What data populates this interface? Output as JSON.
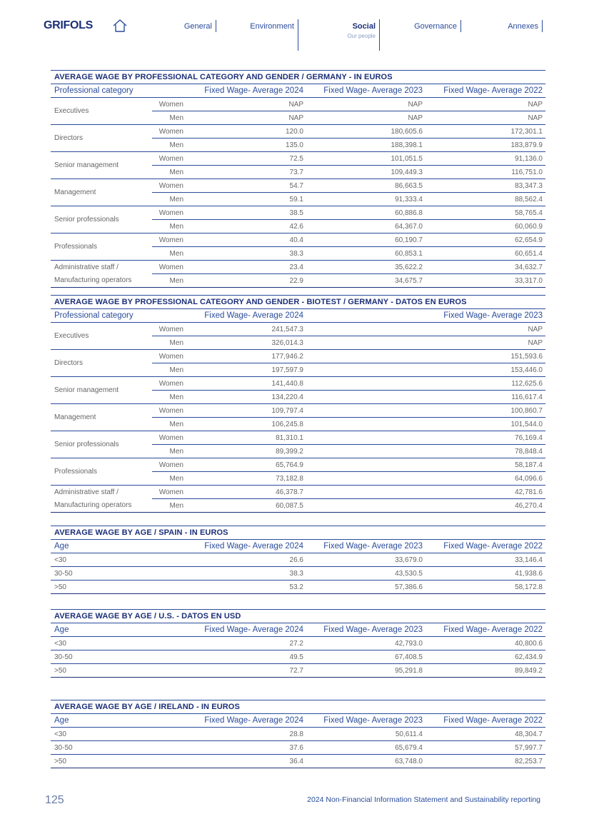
{
  "header": {
    "logo": "GRIFOLS",
    "nav": {
      "general": "General",
      "environment": "Environment",
      "social": "Social",
      "social_sub": "Our people",
      "governance": "Governance",
      "annexes": "Annexes"
    }
  },
  "table1": {
    "title": "AVERAGE WAGE BY PROFESSIONAL CATEGORY AND GENDER / GERMANY - IN EUROS",
    "headers": [
      "Professional category",
      "Fixed Wage- Average 2024",
      "Fixed Wage- Average 2023",
      "Fixed Wage- Average 2022"
    ],
    "rows": [
      {
        "category": "Executives",
        "women": [
          "NAP",
          "NAP",
          "NAP"
        ],
        "men": [
          "NAP",
          "NAP",
          "NAP"
        ]
      },
      {
        "category": "Directors",
        "women": [
          "120.0",
          "180,605.6",
          "172,301.1"
        ],
        "men": [
          "135.0",
          "188,398.1",
          "183,879.9"
        ]
      },
      {
        "category": "Senior management",
        "women": [
          "72.5",
          "101,051.5",
          "91,136.0"
        ],
        "men": [
          "73.7",
          "109,449.3",
          "116,751.0"
        ]
      },
      {
        "category": "Management",
        "women": [
          "54.7",
          "86,663.5",
          "83,347.3"
        ],
        "men": [
          "59.1",
          "91,333.4",
          "88,562.4"
        ]
      },
      {
        "category": "Senior professionals",
        "women": [
          "38.5",
          "60,886.8",
          "58,765.4"
        ],
        "men": [
          "42.6",
          "64,367.0",
          "60,060.9"
        ]
      },
      {
        "category": "Professionals",
        "women": [
          "40.4",
          "60,190.7",
          "62,654.9"
        ],
        "men": [
          "38.3",
          "60,853.1",
          "60,651.4"
        ]
      },
      {
        "category_line1": "Administrative staff /",
        "category_line2": "Manufacturing operators",
        "women": [
          "23.4",
          "35,622.2",
          "34,632.7"
        ],
        "men": [
          "22.9",
          "34,675.7",
          "33,317.0"
        ]
      }
    ],
    "women": "Women",
    "men": "Men"
  },
  "table2": {
    "title": "AVERAGE WAGE BY PROFESSIONAL CATEGORY AND GENDER - BIOTEST / GERMANY - DATOS EN EUROS",
    "headers": [
      "Professional category",
      "Fixed Wage- Average 2024",
      "Fixed Wage- Average 2023"
    ],
    "rows": [
      {
        "category": "Executives",
        "women": [
          "241,547.3",
          "NAP"
        ],
        "men": [
          "326,014.3",
          "NAP"
        ]
      },
      {
        "category": "Directors",
        "women": [
          "177,946.2",
          "151,593.6"
        ],
        "men": [
          "197,597.9",
          "153,446.0"
        ]
      },
      {
        "category": "Senior management",
        "women": [
          "141,440.8",
          "112,625.6"
        ],
        "men": [
          "134,220.4",
          "116,617.4"
        ]
      },
      {
        "category": "Management",
        "women": [
          "109,797.4",
          "100,860.7"
        ],
        "men": [
          "106,245.8",
          "101,544.0"
        ]
      },
      {
        "category": "Senior professionals",
        "women": [
          "81,310.1",
          "76,169.4"
        ],
        "men": [
          "89,399.2",
          "78,848.4"
        ]
      },
      {
        "category": "Professionals",
        "women": [
          "65,764.9",
          "58,187.4"
        ],
        "men": [
          "73,182.8",
          "64,096.6"
        ]
      },
      {
        "category_line1": "Administrative staff /",
        "category_line2": "Manufacturing operators",
        "women": [
          "46,378.7",
          "42,781.6"
        ],
        "men": [
          "60,087.5",
          "46,270.4"
        ]
      }
    ]
  },
  "table3": {
    "title": "AVERAGE WAGE BY AGE / SPAIN  - IN EUROS",
    "headers": [
      "Age",
      "Fixed Wage- Average 2024",
      "Fixed Wage- Average 2023",
      "Fixed Wage- Average 2022"
    ],
    "rows": [
      {
        "age": "<30",
        "values": [
          "26.6",
          "33,679.0",
          "33,146.4"
        ]
      },
      {
        "age": "30-50",
        "values": [
          "38.3",
          "43,530.5",
          "41,938.6"
        ]
      },
      {
        "age": ">50",
        "values": [
          "53.2",
          "57,386.6",
          "58,172.8"
        ]
      }
    ]
  },
  "table4": {
    "title": "AVERAGE WAGE BY AGE / U.S.  - DATOS EN USD",
    "headers": [
      "Age",
      "Fixed Wage- Average 2024",
      "Fixed Wage- Average 2023",
      "Fixed Wage- Average 2022"
    ],
    "rows": [
      {
        "age": "<30",
        "values": [
          "27.2",
          "42,793.0",
          "40,800.6"
        ]
      },
      {
        "age": "30-50",
        "values": [
          "49.5",
          "67,408.5",
          "62,434.9"
        ]
      },
      {
        "age": ">50",
        "values": [
          "72.7",
          "95,291.8",
          "89,849.2"
        ]
      }
    ]
  },
  "table5": {
    "title": "AVERAGE WAGE BY AGE / IRELAND - IN EUROS",
    "headers": [
      "Age",
      "Fixed Wage- Average 2024",
      "Fixed Wage- Average 2023",
      "Fixed Wage- Average 2022"
    ],
    "rows": [
      {
        "age": "<30",
        "values": [
          "28.8",
          "50,611.4",
          "48,304.7"
        ]
      },
      {
        "age": "30-50",
        "values": [
          "37.6",
          "65,679.4",
          "57,997.7"
        ]
      },
      {
        "age": ">50",
        "values": [
          "36.4",
          "63,748.0",
          "82,253.7"
        ]
      }
    ]
  },
  "footer": {
    "page_number": "125",
    "text": "2024 Non-Financial Information Statement and Sustainability reporting"
  }
}
